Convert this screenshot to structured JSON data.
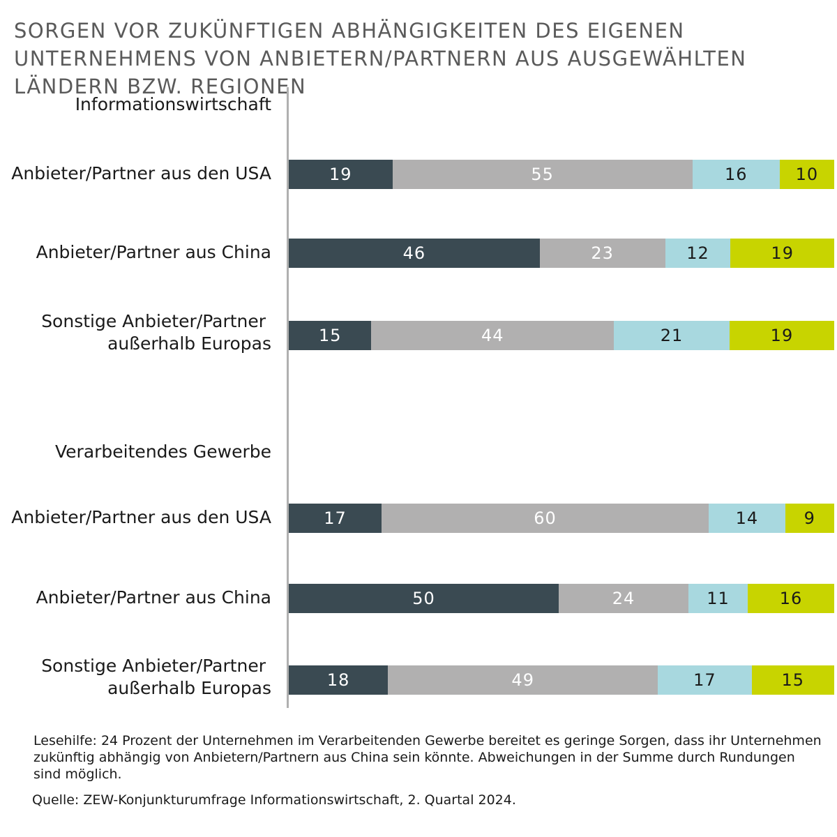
{
  "chart_data": {
    "type": "bar",
    "orientation": "horizontal",
    "stacked": true,
    "title": "SORGEN VOR ZUKÜNFTIGEN ABHÄNGIGKEITEN DES EIGENEN UNTERNEHMENS VON ANBIETERN/PARTNERN AUS AUSGEWÄHLTEN LÄNDERN BZW. REGIONEN",
    "colors": [
      "#3a4a52",
      "#b1b0b0",
      "#a8d8df",
      "#c8d400"
    ],
    "grid": false,
    "groups": [
      {
        "label": "Informationswirtschaft",
        "rows": [
          {
            "label": "Anbieter/Partner aus den USA",
            "values": [
              19,
              55,
              16,
              10
            ]
          },
          {
            "label": "Anbieter/Partner aus China",
            "values": [
              46,
              23,
              12,
              19
            ]
          },
          {
            "label": "Sonstige Anbieter/Partner außerhalb Europas",
            "values": [
              15,
              44,
              21,
              19
            ]
          }
        ]
      },
      {
        "label": "Verarbeitendes Gewerbe",
        "rows": [
          {
            "label": "Anbieter/Partner aus den USA",
            "values": [
              17,
              60,
              14,
              9
            ]
          },
          {
            "label": "Anbieter/Partner aus China",
            "values": [
              50,
              24,
              11,
              16
            ]
          },
          {
            "label": "Sonstige Anbieter/Partner außerhalb Europas",
            "values": [
              18,
              49,
              17,
              15
            ]
          }
        ]
      }
    ]
  },
  "note": "Lesehilfe: 24 Prozent der Unternehmen im Verarbeitenden Gewerbe bereitet es geringe Sorgen, dass ihr Unternehmen zukünftig abhängig von Anbietern/Partnern aus China sein könnte. Abweichungen in der Summe durch Rundungen sind möglich.",
  "source": "Quelle: ZEW-Konjunkturumfrage Informationswirtschaft, 2. Quartal 2024."
}
